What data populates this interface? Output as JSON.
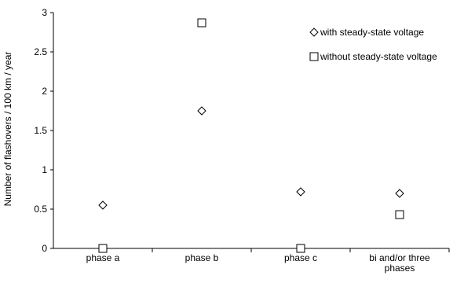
{
  "chart_data": {
    "type": "scatter",
    "categories": [
      "phase a",
      "phase b",
      "phase c",
      "bi and/or three phases"
    ],
    "category_lines": [
      [
        "phase a"
      ],
      [
        "phase b"
      ],
      [
        "phase c"
      ],
      [
        "bi and/or three",
        "phases"
      ]
    ],
    "series": [
      {
        "name": "with steady-state voltage",
        "marker": "diamond",
        "values": [
          0.55,
          1.75,
          0.72,
          0.7
        ]
      },
      {
        "name": "without steady-state voltage",
        "marker": "square",
        "values": [
          0.0,
          2.87,
          0.0,
          0.43
        ]
      }
    ],
    "xlabel": "",
    "ylabel": "Number  of  flashovers / 100 km / year",
    "ylim": [
      0,
      3
    ],
    "yticks": [
      0,
      0.5,
      1,
      1.5,
      2,
      2.5,
      3
    ],
    "ytick_labels": [
      "0",
      "0.5",
      "1",
      "1.5",
      "2",
      "2.5",
      "3"
    ],
    "grid": false,
    "legend_position": "top-right"
  }
}
